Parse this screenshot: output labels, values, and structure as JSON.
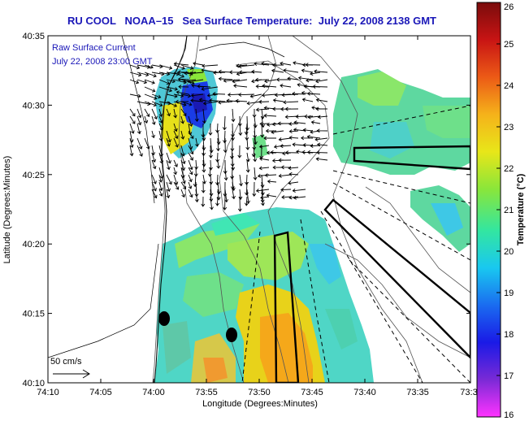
{
  "title": "RU COOL   NOAA–15   Sea Surface Temperature:  July 22, 2008 2138 GMT",
  "legend": {
    "line1": "Raw Surface Current",
    "line2": "July 22, 2008 23:00 GMT"
  },
  "scale_label": "50 cm/s",
  "axes": {
    "xlabel": "Longitude (Degrees:Minutes)",
    "ylabel": "Latitude (Degrees:Minutes)",
    "x_ticks": [
      "74:10",
      "74:05",
      "74:00",
      "73:55",
      "73:50",
      "73:45",
      "73:40",
      "73:35",
      "73:3"
    ],
    "y_ticks": [
      "40:35",
      "40:30",
      "40:25",
      "40:20",
      "40:15",
      "40:10"
    ]
  },
  "colorbar": {
    "label": "Temperature (°C)",
    "ticks": [
      "26",
      "25",
      "24",
      "23",
      "22",
      "21",
      "20",
      "19",
      "18",
      "17",
      "16"
    ],
    "range": [
      16,
      26
    ],
    "stops": [
      "#ff33ff",
      "#7a2ad6",
      "#1a1ae6",
      "#1a6cf0",
      "#19c8f0",
      "#33e6a0",
      "#8ae63a",
      "#e8e619",
      "#f5b21a",
      "#ec5a16",
      "#c81414",
      "#7a0c0c"
    ]
  },
  "colors": {
    "title": "#1a17b8",
    "land": "#ffffff",
    "no_data": "#ffffff"
  }
}
